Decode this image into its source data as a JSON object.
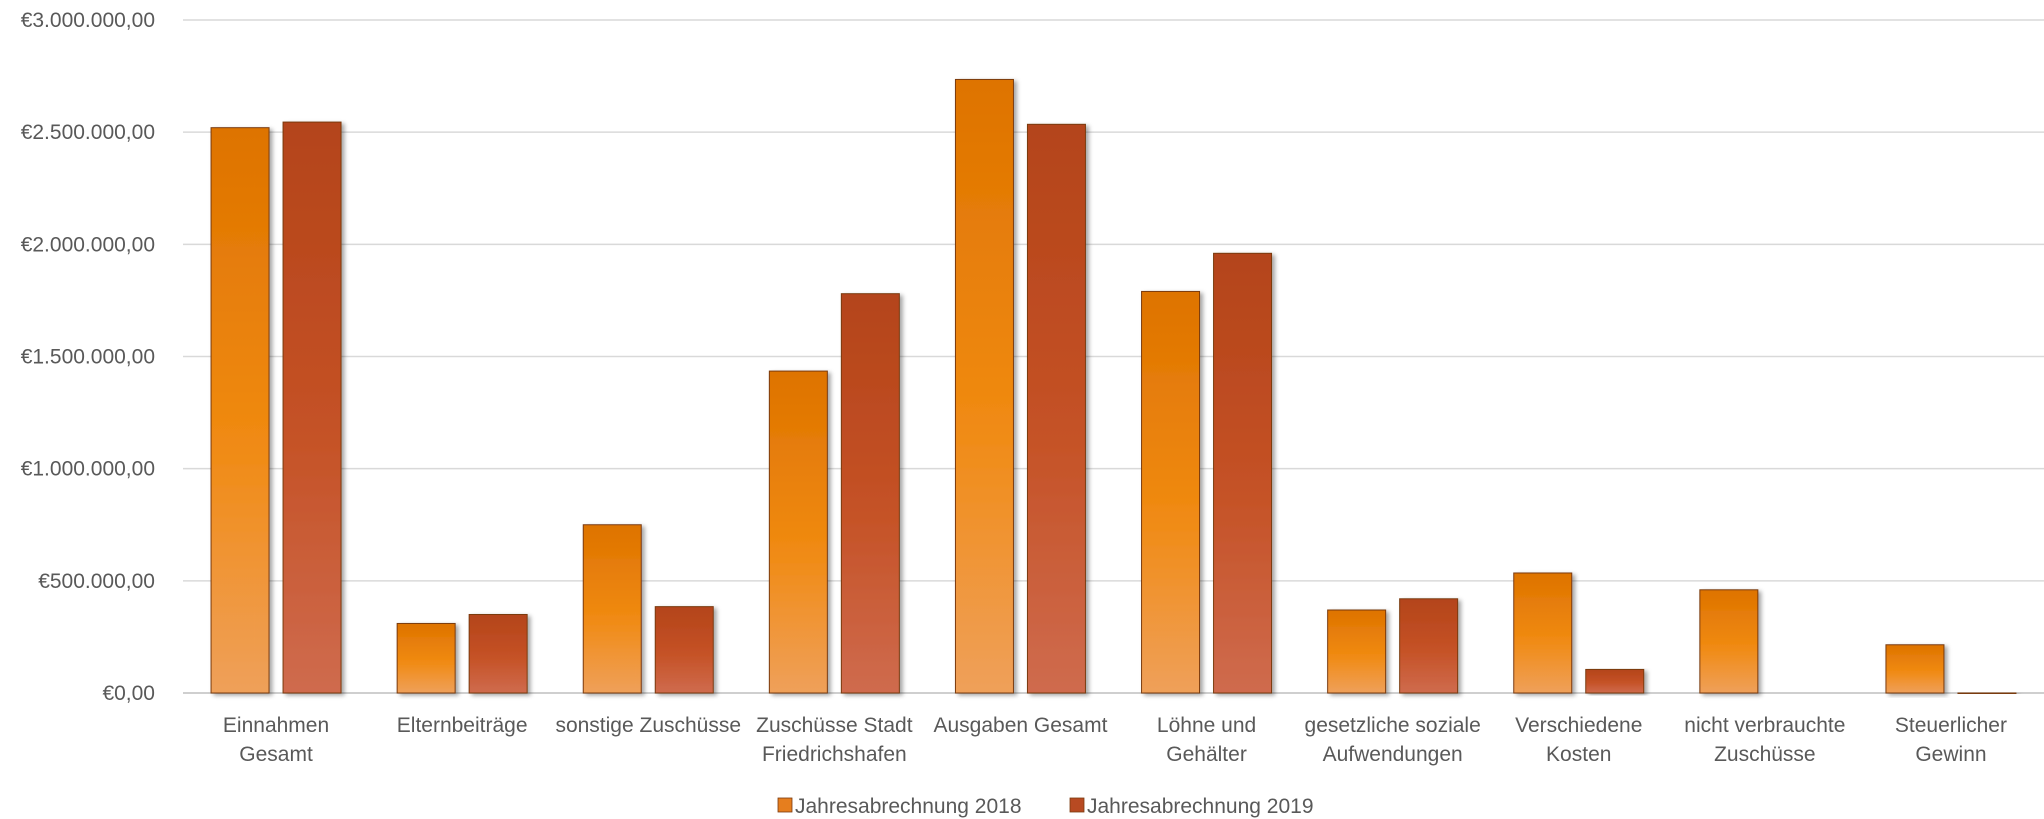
{
  "chart_data": {
    "type": "bar",
    "title": "",
    "xlabel": "",
    "ylabel": "",
    "ylim": [
      0,
      3000000
    ],
    "y_ticks": [
      "€0,00",
      "€500.000,00",
      "€1.000.000,00",
      "€1.500.000,00",
      "€2.000.000,00",
      "€2.500.000,00",
      "€3.000.000,00"
    ],
    "y_tick_values": [
      0,
      500000,
      1000000,
      1500000,
      2000000,
      2500000,
      3000000
    ],
    "grid": true,
    "legend_position": "bottom",
    "categories": [
      [
        "Einnahmen",
        "Gesamt"
      ],
      [
        "Elternbeiträge"
      ],
      [
        "sonstige Zuschüsse"
      ],
      [
        "Zuschüsse Stadt",
        "Friedrichshafen"
      ],
      [
        "Ausgaben Gesamt"
      ],
      [
        "Löhne und",
        "Gehälter"
      ],
      [
        "gesetzliche soziale",
        "Aufwendungen"
      ],
      [
        "Verschiedene",
        "Kosten"
      ],
      [
        "nicht verbrauchte",
        "Zuschüsse"
      ],
      [
        "Steuerlicher",
        "Gewinn"
      ]
    ],
    "series": [
      {
        "name": "Jahresabrechnung 2018",
        "color": "#E67E1E",
        "values": [
          2520000,
          310000,
          750000,
          1435000,
          2735000,
          1790000,
          370000,
          535000,
          460000,
          215000
        ]
      },
      {
        "name": "Jahresabrechnung 2019",
        "color": "#B84A22",
        "values": [
          2545000,
          350000,
          385000,
          1780000,
          2535000,
          1960000,
          420000,
          105000,
          0,
          2000
        ]
      }
    ]
  }
}
